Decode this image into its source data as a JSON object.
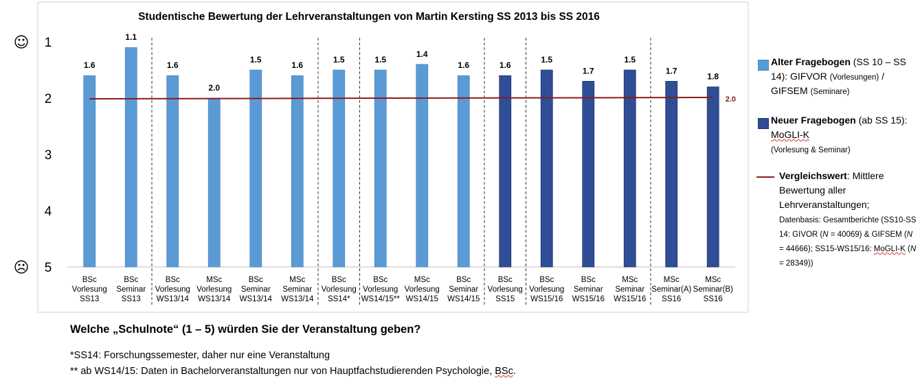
{
  "chart_data": {
    "type": "bar",
    "title": "Studentische Bewertung der Lehrveranstaltungen von Martin Kersting SS 2013 bis SS 2016",
    "categories": [
      [
        "BSc",
        "Vorlesung",
        "SS13"
      ],
      [
        "BSc",
        "Seminar",
        "SS13"
      ],
      [
        "BSc",
        "Vorlesung",
        "WS13/14"
      ],
      [
        "MSc",
        "Vorlesung",
        "WS13/14"
      ],
      [
        "BSc",
        "Seminar",
        "WS13/14"
      ],
      [
        "MSc",
        "Seminar",
        "WS13/14"
      ],
      [
        "BSc",
        "Vorlesung",
        "SS14*"
      ],
      [
        "BSc",
        "Vorlesung",
        "WS14/15**"
      ],
      [
        "MSc",
        "Vorlesung",
        "WS14/15"
      ],
      [
        "BSc",
        "Seminar",
        "WS14/15"
      ],
      [
        "BSc",
        "Vorlesung",
        "SS15"
      ],
      [
        "BSc",
        "Vorlesung",
        "WS15/16"
      ],
      [
        "BSc",
        "Seminar",
        "WS15/16"
      ],
      [
        "MSc",
        "Seminar",
        "WS15/16"
      ],
      [
        "MSc",
        "Seminar(A)",
        "SS16"
      ],
      [
        "MSc",
        "Seminar(B)",
        "SS16"
      ]
    ],
    "values": [
      1.6,
      1.1,
      1.6,
      2.0,
      1.5,
      1.6,
      1.5,
      1.5,
      1.4,
      1.6,
      1.6,
      1.5,
      1.7,
      1.5,
      1.7,
      1.8
    ],
    "value_labels": [
      "1.6",
      "1.1",
      "1.6",
      "2.0",
      "1.5",
      "1.6",
      "1.5",
      "1.5",
      "1.4",
      "1.6",
      "1.6",
      "1.5",
      "1.7",
      "1.5",
      "1.7",
      "1.8"
    ],
    "bar_groups": [
      "old",
      "old",
      "old",
      "old",
      "old",
      "old",
      "old",
      "old",
      "old",
      "old",
      "new",
      "new",
      "new",
      "new",
      "new",
      "new"
    ],
    "group_colors": {
      "old": "#5B9BD5",
      "old_edge": "#4A8AC6",
      "new": "#2F4E96",
      "new_edge": "#1F3670"
    },
    "reference_line": {
      "value": 2.0,
      "label": "2.0",
      "color": "#8B1A1A"
    },
    "separators_after": [
      1,
      5,
      6,
      9,
      10,
      13
    ],
    "y_axis": {
      "ticks": [
        1,
        2,
        3,
        4,
        5
      ],
      "tick_labels": [
        "1",
        "2",
        "3",
        "4",
        "5"
      ],
      "range": [
        1,
        5
      ],
      "inverted": true,
      "top_symbol": "☺",
      "bottom_symbol": "☹"
    },
    "grid": false,
    "legend_position": "right"
  },
  "legend": {
    "old": {
      "bold": "Alter Fragebogen",
      "text1": " (SS 10 – SS 14): GIFVOR ",
      "small1": "(Vorlesungen)",
      "text2": " / GIFSEM ",
      "small2": "(Seminare)"
    },
    "new": {
      "bold": "Neuer Fragebogen",
      "text1": " (ab SS 15): ",
      "brand": "MoGLI-K",
      "small1": "(Vorlesung & Seminar)"
    },
    "ref": {
      "bold": "Vergleichswert",
      "text1": ": Mittlere Bewertung aller Lehrveranstaltungen;",
      "small1": "Datenbasis: Gesamtberichte (SS10-SS 14: GIVOR (",
      "n1": "N",
      "small2": " = 40069) & GIFSEM  (",
      "n2": "N",
      "small3": " = 44666); SS15-WS15/16: ",
      "brand": "MoGLI-K",
      "small4": " (",
      "n3": "N",
      "small5": " =  28349))"
    }
  },
  "question": "Welche „Schulnote“ (1 – 5) würden Sie der Veranstaltung geben?",
  "notes": {
    "note1": "*SS14: Forschungssemester, daher nur eine Veranstaltung",
    "note2_pre": "** ab WS14/15: Daten in Bachelorveranstaltungen nur von Hauptfachstudierenden Psychologie, ",
    "note2_bsc": "BSc",
    "note2_post": "."
  }
}
